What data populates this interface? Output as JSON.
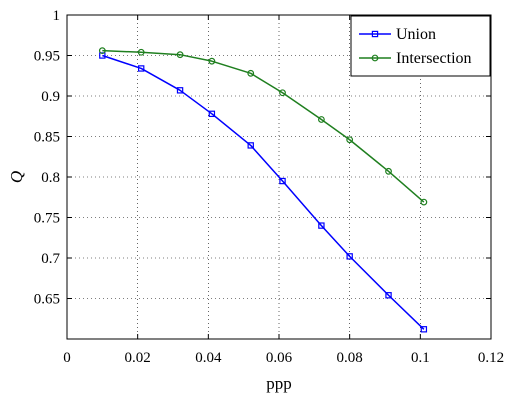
{
  "chart_data": {
    "type": "line",
    "title": "",
    "xlabel": "ppp",
    "ylabel": "Q",
    "xlim": [
      0,
      0.12
    ],
    "ylim": [
      0.6,
      1.0
    ],
    "xticks": [
      0,
      0.02,
      0.04,
      0.06,
      0.08,
      0.1,
      0.12
    ],
    "xtick_labels": [
      "0",
      "0.02",
      "0.04",
      "0.06",
      "0.08",
      "0.1",
      "0.12"
    ],
    "yticks": [
      0.65,
      0.7,
      0.75,
      0.8,
      0.85,
      0.9,
      0.95,
      1.0
    ],
    "ytick_labels": [
      "0.65",
      "0.7",
      "0.75",
      "0.8",
      "0.85",
      "0.9",
      "0.95",
      "1"
    ],
    "grid": true,
    "legend_position": "top-right",
    "series": [
      {
        "name": "Union",
        "color": "#0000ff",
        "marker": "square",
        "x": [
          0.01,
          0.021,
          0.032,
          0.041,
          0.052,
          0.061,
          0.072,
          0.08,
          0.091,
          0.101
        ],
        "y": [
          0.95,
          0.934,
          0.907,
          0.878,
          0.839,
          0.795,
          0.74,
          0.702,
          0.654,
          0.612
        ]
      },
      {
        "name": "Intersection",
        "color": "#1f7f1f",
        "marker": "circle",
        "x": [
          0.01,
          0.021,
          0.032,
          0.041,
          0.052,
          0.061,
          0.072,
          0.08,
          0.091,
          0.101
        ],
        "y": [
          0.956,
          0.954,
          0.951,
          0.943,
          0.928,
          0.904,
          0.871,
          0.846,
          0.807,
          0.769
        ]
      }
    ]
  }
}
